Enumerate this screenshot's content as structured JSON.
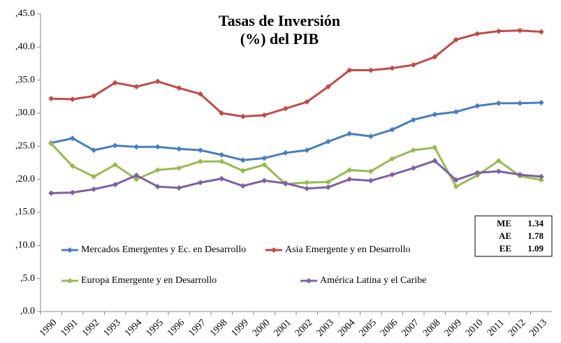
{
  "chart_data": {
    "type": "line",
    "title": [
      "Tasas de Inversión",
      "(%) del PIB"
    ],
    "categories": [
      "1990",
      "1991",
      "1992",
      "1993",
      "1994",
      "1995",
      "1996",
      "1997",
      "1998",
      "1999",
      "2000",
      "2001",
      "2002",
      "2003",
      "2004",
      "2005",
      "2006",
      "2007",
      "2008",
      "2009",
      "2010",
      "2011",
      "2012",
      "2013"
    ],
    "series": [
      {
        "name": "Mercados Emergentes y Ec. en Desarrollo",
        "color": "#4a7ebb",
        "values": [
          25.5,
          26.2,
          24.4,
          25.1,
          24.9,
          24.9,
          24.6,
          24.4,
          23.7,
          22.9,
          23.2,
          24.0,
          24.4,
          25.7,
          26.9,
          26.5,
          27.5,
          29.0,
          29.8,
          30.2,
          31.1,
          31.5,
          31.5,
          31.6
        ]
      },
      {
        "name": "Asia Emergente y en Desarrollo",
        "color": "#be4b48",
        "values": [
          32.2,
          32.1,
          32.6,
          34.6,
          34.0,
          34.8,
          33.8,
          32.9,
          30.0,
          29.5,
          29.7,
          30.7,
          31.7,
          34.0,
          36.5,
          36.5,
          36.8,
          37.3,
          38.5,
          41.1,
          42.0,
          42.4,
          42.5,
          42.3
        ]
      },
      {
        "name": "Europa Emergente y en Desarrollo",
        "color": "#98b954",
        "values": [
          25.4,
          22.0,
          20.4,
          22.2,
          20.0,
          21.4,
          21.7,
          22.7,
          22.7,
          21.3,
          22.2,
          19.3,
          19.5,
          19.6,
          21.4,
          21.2,
          23.1,
          24.4,
          24.8,
          18.9,
          20.6,
          22.8,
          20.5,
          19.9
        ]
      },
      {
        "name": "América Latina y el Caribe",
        "color": "#7d60a0",
        "values": [
          17.9,
          18.0,
          18.5,
          19.2,
          20.6,
          18.9,
          18.7,
          19.5,
          20.1,
          19.0,
          19.8,
          19.4,
          18.6,
          18.8,
          20.0,
          19.8,
          20.7,
          21.7,
          22.8,
          19.9,
          21.0,
          21.2,
          20.7,
          20.4
        ]
      }
    ],
    "ylim": [
      0,
      45
    ],
    "yticks": [
      {
        "value": 0,
        "label": ",0.0"
      },
      {
        "value": 5,
        "label": ",5.0"
      },
      {
        "value": 10,
        "label": ",10.0"
      },
      {
        "value": 15,
        "label": ",15.0"
      },
      {
        "value": 20,
        "label": ",20.0"
      },
      {
        "value": 25,
        "label": ",25.0"
      },
      {
        "value": 30,
        "label": ",30.0"
      },
      {
        "value": 35,
        "label": ",35.0"
      },
      {
        "value": 40,
        "label": ",40.0"
      },
      {
        "value": 45,
        "label": ",45.0"
      }
    ],
    "grid": false,
    "annotation_table": [
      [
        "ME",
        1.34
      ],
      [
        "AE",
        1.78
      ],
      [
        "EE",
        1.09
      ]
    ]
  }
}
